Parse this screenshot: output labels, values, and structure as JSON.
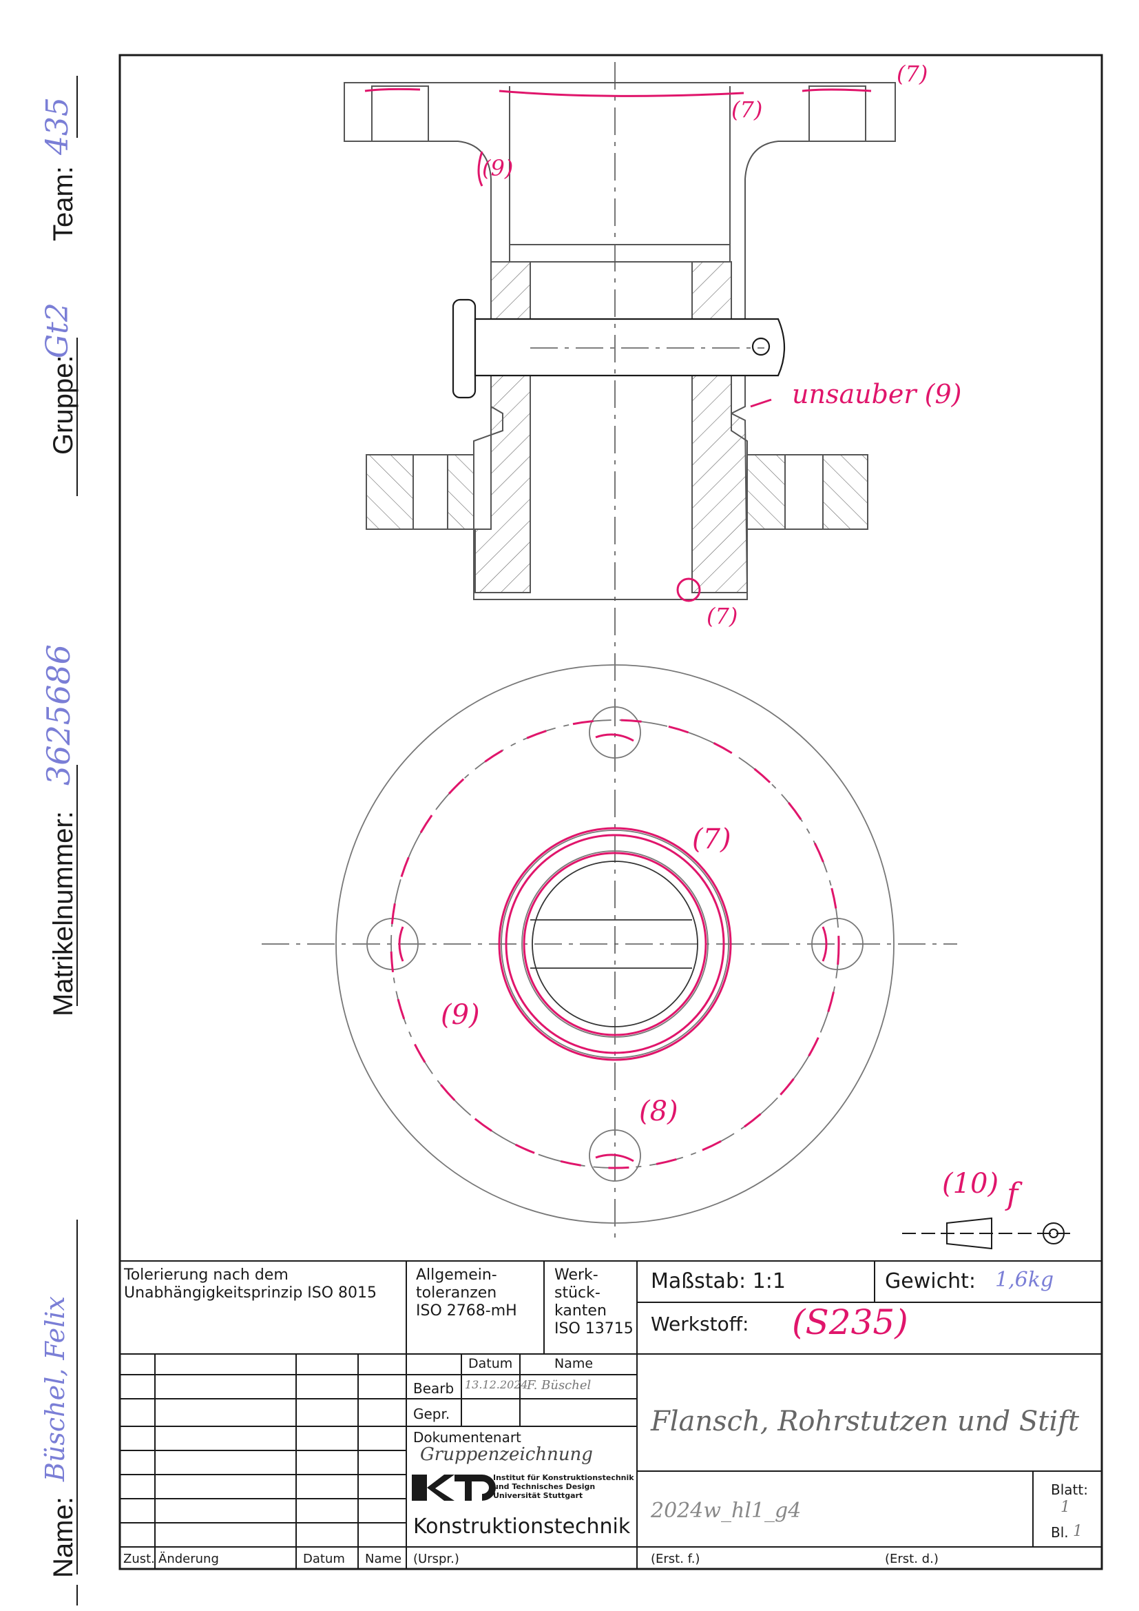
{
  "side": {
    "name_label": "Name:",
    "name_value": "Büschel, Felix",
    "matrikel_label": "Matrikelnummer:",
    "matrikel_value": "3625686",
    "gruppe_label": "Gruppe:",
    "gruppe_value": "Gt2",
    "team_label": "Team:",
    "team_value": "435"
  },
  "annotations": {
    "top_right_7": "(7)",
    "flange_top_7": "(7)",
    "left_9": "(9)",
    "unsauber": "unsauber (9)",
    "bottom_bore_7": "(7)",
    "plan_7": "(7)",
    "plan_9": "(9)",
    "plan_8": "(8)",
    "projection_10": "(10)",
    "projection_f": "f"
  },
  "title_block": {
    "tolerierung": "Tolerierung nach dem",
    "tolerierung2": "Unabhängigkeitsprinzip ISO 8015",
    "allgemein1": "Allgemein-",
    "allgemein2": "toleranzen",
    "allgemein3": "ISO 2768-mH",
    "werk1": "Werk-",
    "werk2": "stück-",
    "werk3": "kanten",
    "werk4": "ISO 13715",
    "massstab": "Maßstab: 1:1",
    "gewicht_label": "Gewicht:",
    "gewicht_value": "1,6kg",
    "werkstoff_label": "Werkstoff:",
    "werkstoff_value": "(S235)",
    "datum_header": "Datum",
    "name_header": "Name",
    "bearb": "Bearb",
    "bearb_datum": "13.12.2024",
    "bearb_name": "F. Büschel",
    "gepr": "Gepr.",
    "dokumentenart": "Dokumentenart",
    "dokumentenart_value": "Gruppenzeichnung",
    "drawing_title": "Flansch, Rohrstutzen und Stift",
    "kt_logo": "KT",
    "institut1": "Institut für Konstruktionstechnik",
    "institut2": "und Technisches Design",
    "institut3": "Universität Stuttgart",
    "konstruktionstechnik": "Konstruktionstechnik",
    "drawing_number": "2024w_hl1_g4",
    "blatt_label": "Blatt:",
    "blatt_value": "1",
    "bl_label": "Bl.",
    "bl_value": "1",
    "zust": "Zust.",
    "aenderung": "Änderung",
    "datum_footer": "Datum",
    "name_footer": "Name",
    "urspr": "(Urspr.)",
    "erst_f": "(Erst. f.)",
    "erst_d": "(Erst. d.)"
  },
  "colors": {
    "ink": "#1a1a1a",
    "pencil": "#555555",
    "correction": "#e0156b",
    "handwriting_blue": "#7a7ed6"
  }
}
